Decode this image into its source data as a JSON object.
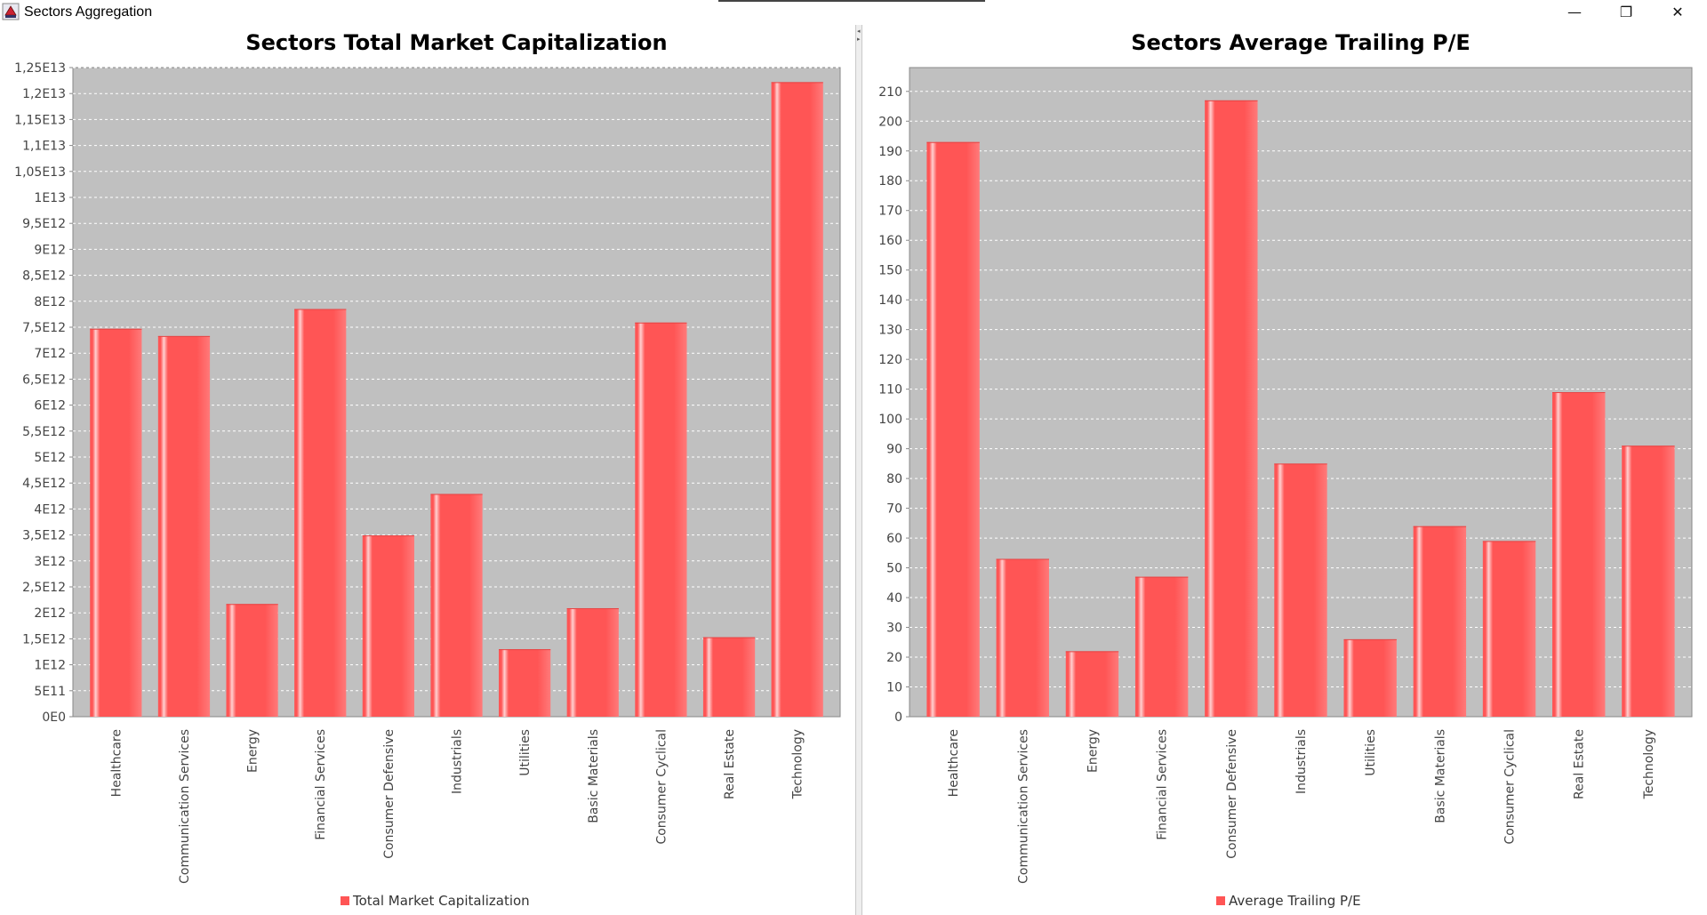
{
  "window": {
    "title": "Sectors Aggregation",
    "minimize_glyph": "—",
    "maximize_glyph": "❐",
    "close_glyph": "✕"
  },
  "colors": {
    "bar": "#ff5555",
    "plot_bg": "#c0c0c0",
    "gridline": "#ffffff",
    "accent_highlight": "#ffd0d0"
  },
  "chart_data": [
    {
      "type": "bar",
      "title": "Sectors Total Market Capitalization",
      "categories": [
        "Healthcare",
        "Communication Services",
        "Energy",
        "Financial Services",
        "Consumer Defensive",
        "Industrials",
        "Utilities",
        "Basic Materials",
        "Consumer Cyclical",
        "Real Estate",
        "Technology"
      ],
      "series": [
        {
          "name": "Total Market Capitalization",
          "values": [
            7470000000000.0,
            7330000000000.0,
            2170000000000.0,
            7850000000000.0,
            3490000000000.0,
            4290000000000.0,
            1300000000000.0,
            2090000000000.0,
            7590000000000.0,
            1530000000000.0,
            12220000000000.0
          ]
        }
      ],
      "ylim": [
        0,
        12500000000000.0
      ],
      "yticks": [
        "0E0",
        "5E11",
        "1E12",
        "1,5E12",
        "2E12",
        "2,5E12",
        "3E12",
        "3,5E12",
        "4E12",
        "4,5E12",
        "5E12",
        "5,5E12",
        "6E12",
        "6,5E12",
        "7E12",
        "7,5E12",
        "8E12",
        "8,5E12",
        "9E12",
        "9,5E12",
        "1E13",
        "1,05E13",
        "1,1E13",
        "1,15E13",
        "1,2E13",
        "1,25E13"
      ],
      "ytick_step": 500000000000.0,
      "grid": true,
      "legend_position": "bottom-center"
    },
    {
      "type": "bar",
      "title": "Sectors Average Trailing P/E",
      "categories": [
        "Healthcare",
        "Communication Services",
        "Energy",
        "Financial Services",
        "Consumer Defensive",
        "Industrials",
        "Utilities",
        "Basic Materials",
        "Consumer Cyclical",
        "Real Estate",
        "Technology"
      ],
      "series": [
        {
          "name": "Average Trailing P/E",
          "values": [
            193,
            53,
            22,
            47,
            207,
            85,
            26,
            64,
            59,
            109,
            91
          ]
        }
      ],
      "ylim": [
        0,
        218
      ],
      "yticks": [
        "0",
        "10",
        "20",
        "30",
        "40",
        "50",
        "60",
        "70",
        "80",
        "90",
        "100",
        "110",
        "120",
        "130",
        "140",
        "150",
        "160",
        "170",
        "180",
        "190",
        "200",
        "210"
      ],
      "ytick_step": 10,
      "grid": true,
      "legend_position": "bottom-center"
    }
  ]
}
